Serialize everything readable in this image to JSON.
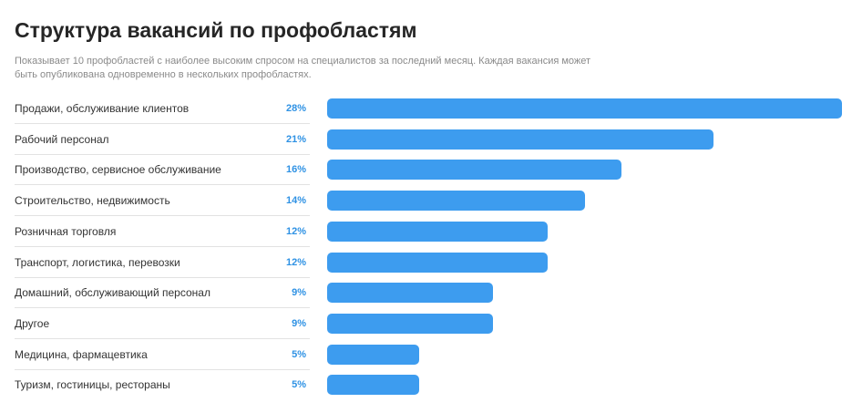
{
  "header": {
    "title": "Структура вакансий по профобластям",
    "subtitle": "Показывает 10 профобластей с наиболее высоким спросом на специалистов за последний месяц. Каждая вакансия может быть опубликована одновременно в нескольких профобластях."
  },
  "colors": {
    "bar": "#3d9cef",
    "value_text": "#2f92e4"
  },
  "chart_data": {
    "type": "bar",
    "orientation": "horizontal",
    "categories": [
      "Продажи, обслуживание клиентов",
      "Рабочий персонал",
      "Производство, сервисное обслуживание",
      "Строительство, недвижимость",
      "Розничная торговля",
      "Транспорт, логистика, перевозки",
      "Домашний, обслуживающий персонал",
      "Другое",
      "Медицина, фармацевтика",
      "Туризм, гостиницы, рестораны"
    ],
    "values": [
      28,
      21,
      16,
      14,
      12,
      12,
      9,
      9,
      5,
      5
    ],
    "value_labels": [
      "28%",
      "21%",
      "16%",
      "14%",
      "12%",
      "12%",
      "9%",
      "9%",
      "5%",
      "5%"
    ],
    "unit": "%",
    "grid": false,
    "legend": "none"
  }
}
